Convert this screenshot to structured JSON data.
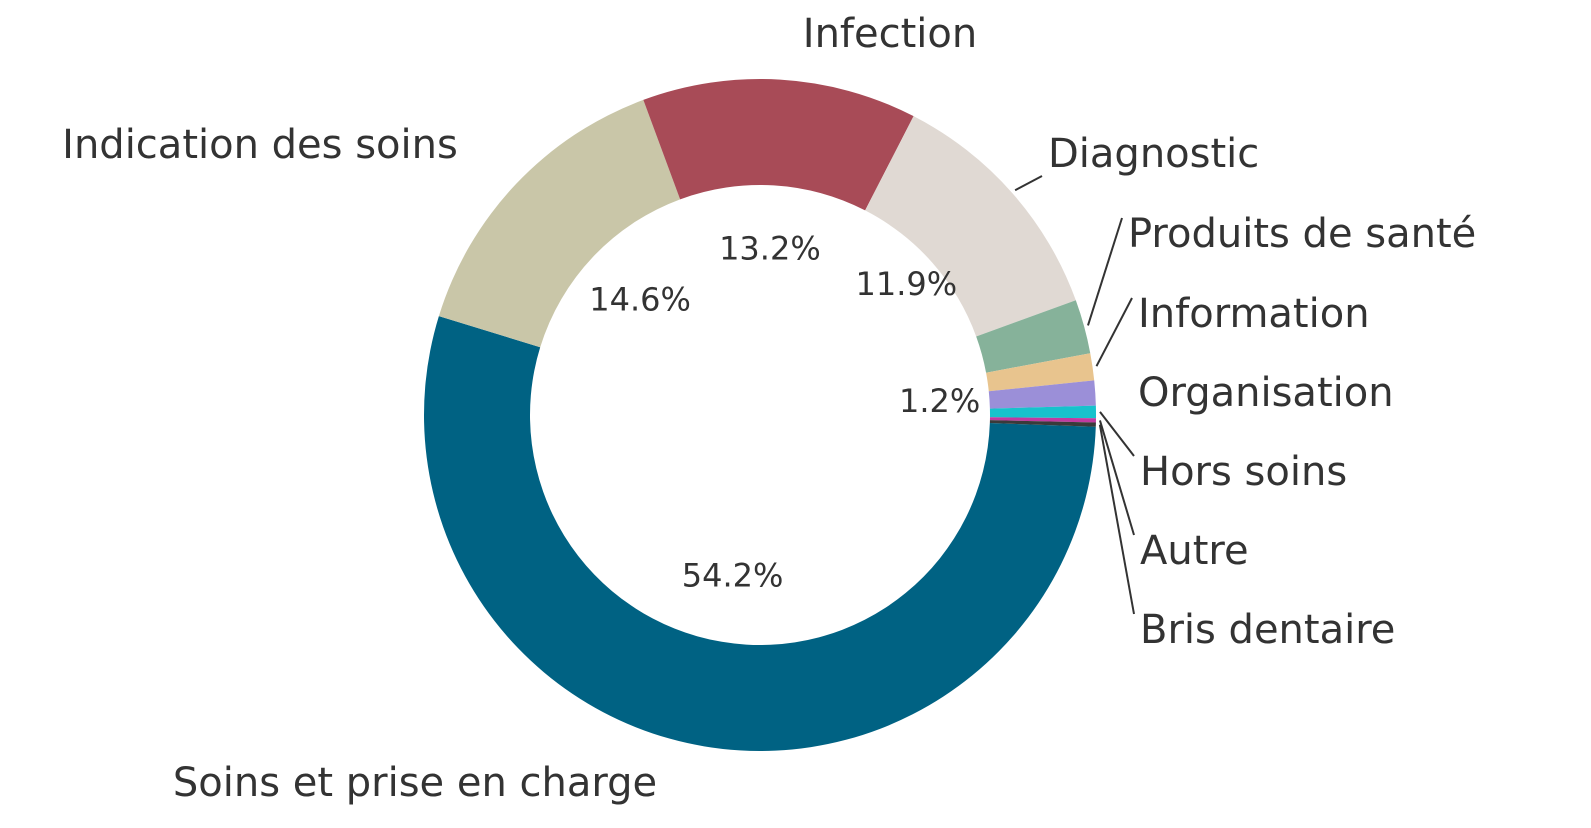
{
  "chart_data": {
    "type": "donut",
    "categories": [
      "Soins et prise en charge",
      "Indication des soins",
      "Infection",
      "Diagnostic",
      "Produits de santé",
      "Information",
      "Organisation",
      "Hors soins",
      "Autre",
      "Bris dentaire"
    ],
    "values": [
      54.2,
      14.6,
      13.2,
      11.9,
      2.6,
      1.3,
      1.2,
      0.6,
      0.2,
      0.2
    ],
    "value_labels": [
      "54.2%",
      "14.6%",
      "13.2%",
      "11.9%",
      null,
      null,
      "1.2%",
      null,
      null,
      null
    ],
    "colors": [
      "#006283",
      "#c9c6a8",
      "#a84b57",
      "#e0d9d3",
      "#86b29a",
      "#e8c48e",
      "#9b8fd8",
      "#17c2cc",
      "#c03aa0",
      "#3a3a3a"
    ]
  }
}
